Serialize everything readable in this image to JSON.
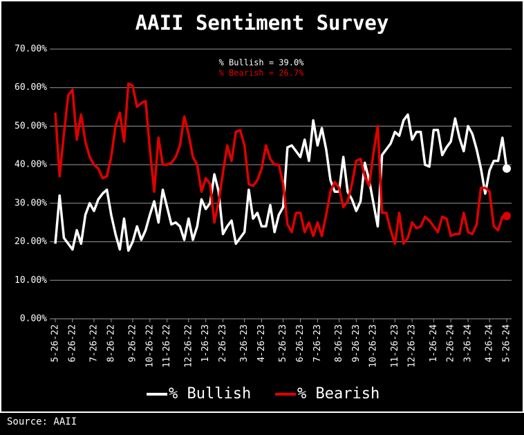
{
  "chart_data": {
    "type": "line",
    "title": "AAII Sentiment Survey",
    "source": "Source: AAII",
    "annotations": [
      {
        "text": "% Bullish = 39.0%",
        "color": "#ffffff"
      },
      {
        "text": "% Bearish = 26.7%",
        "color": "#e00000"
      }
    ],
    "categories": [
      "5-26-22",
      null,
      null,
      null,
      "6-26-22",
      null,
      null,
      null,
      null,
      "7-26-22",
      null,
      null,
      null,
      "8-26-22",
      null,
      null,
      null,
      null,
      "9-26-22",
      null,
      null,
      null,
      "10-26-22",
      null,
      null,
      null,
      "11-26-22",
      null,
      null,
      null,
      null,
      "12-26-22",
      null,
      null,
      null,
      "1-26-23",
      null,
      null,
      null,
      "2-26-23",
      null,
      null,
      null,
      null,
      "3-26-23",
      null,
      null,
      null,
      "4-26-23",
      null,
      null,
      null,
      null,
      "5-26-23",
      null,
      null,
      null,
      "6-26-23",
      null,
      null,
      null,
      "7-26-23",
      null,
      null,
      null,
      null,
      "8-26-23",
      null,
      null,
      null,
      "9-26-23",
      null,
      null,
      null,
      "10-26-23",
      null,
      null,
      null,
      null,
      "11-26-23",
      null,
      null,
      null,
      "12-26-23",
      null,
      null,
      null,
      null,
      "1-26-24",
      null,
      null,
      null,
      "2-26-24",
      null,
      null,
      null,
      "3-26-24",
      null,
      null,
      null,
      null,
      "4-26-24",
      null,
      null,
      null,
      "5-26-24"
    ],
    "series": [
      {
        "name": "% Bullish",
        "color": "#ffffff",
        "values": [
          19.5,
          32,
          21,
          19.5,
          18,
          23,
          19.5,
          27,
          30,
          28,
          31,
          32.5,
          33.5,
          27,
          22,
          18,
          26,
          17.7,
          20,
          24,
          20.5,
          23,
          27,
          30.5,
          25,
          33.5,
          29,
          24.5,
          25,
          24,
          20.5,
          26,
          20.5,
          24,
          31,
          28.5,
          30,
          37.5,
          33,
          22,
          24,
          25.5,
          19.5,
          21,
          22.5,
          33.5,
          26,
          27.5,
          24,
          24,
          29.5,
          22.5,
          27,
          29,
          44.5,
          45,
          43.5,
          42,
          46.5,
          41,
          51.5,
          45,
          49.5,
          44,
          36,
          33,
          33,
          42,
          33,
          31,
          28,
          30.5,
          40.5,
          36,
          30,
          24,
          42.5,
          44,
          45.5,
          48.5,
          47.5,
          51.5,
          53,
          46.5,
          48.5,
          48.5,
          40,
          39.5,
          49,
          49,
          42.5,
          44.5,
          46,
          52,
          47,
          43.5,
          50,
          48,
          44,
          39,
          32.5,
          38.5,
          41,
          41,
          47,
          39.0
        ]
      },
      {
        "name": "% Bearish",
        "color": "#e00000",
        "values": [
          53.5,
          37,
          48,
          58,
          59.5,
          46.5,
          53,
          46,
          42,
          40,
          39,
          36.5,
          37,
          42,
          50,
          53.5,
          46,
          61,
          60.5,
          55,
          56,
          56.5,
          44,
          33,
          47,
          40,
          40,
          40.5,
          42,
          45,
          52.5,
          48,
          42,
          40,
          33,
          36.5,
          35,
          25,
          30.5,
          38,
          45,
          41,
          48.5,
          49,
          45,
          35,
          34.5,
          36,
          39,
          45,
          41.5,
          40,
          40,
          35,
          24.5,
          22.5,
          27.5,
          27.5,
          22.5,
          25,
          21.5,
          25,
          21.5,
          27,
          33,
          35.5,
          34,
          29,
          30.5,
          35,
          41,
          41.5,
          37,
          34.5,
          43,
          50,
          27.5,
          27.5,
          23,
          19.5,
          27.5,
          19.5,
          21,
          25,
          23.5,
          24,
          26.5,
          25.5,
          24,
          22.5,
          26.5,
          26,
          21.5,
          22,
          22,
          27.5,
          22.5,
          22,
          24.5,
          34,
          34,
          33,
          24,
          23,
          26.5,
          26.7
        ]
      }
    ],
    "ylim": [
      0,
      70
    ],
    "yticks": [
      {
        "value": 0,
        "label": "0.00%"
      },
      {
        "value": 10,
        "label": "10.00%"
      },
      {
        "value": 20,
        "label": "20.00%"
      },
      {
        "value": 30,
        "label": "30.00%"
      },
      {
        "value": 40,
        "label": "40.00%"
      },
      {
        "value": 50,
        "label": "50.00%"
      },
      {
        "value": 60,
        "label": "60.00%"
      },
      {
        "value": 70,
        "label": "70.00%"
      }
    ],
    "grid": true
  }
}
